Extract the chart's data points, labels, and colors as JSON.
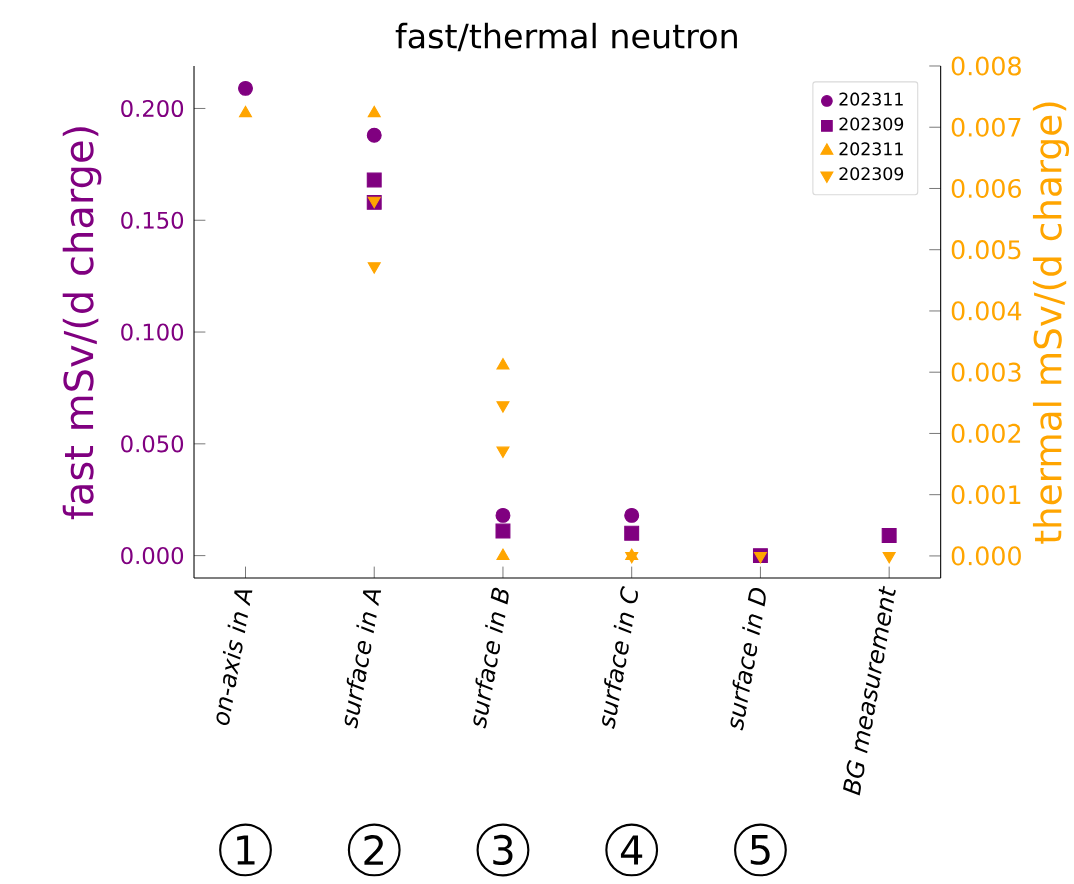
{
  "chart_data": {
    "type": "scatter",
    "title": "fast/thermal neutron",
    "categories": [
      "on-axis in A",
      "surface in A",
      "surface in B",
      "surface in C",
      "surface in D",
      "BG measurement"
    ],
    "ylabel": "fast mSv/(d charge)",
    "y2label": "thermal mSv/(d charge)",
    "ylim": [
      -0.01,
      0.219
    ],
    "yticks": [
      {
        "value": 0,
        "label": "0.000"
      },
      {
        "value": 0.05,
        "label": "0.050"
      },
      {
        "value": 0.1,
        "label": "0.100"
      },
      {
        "value": 0.15,
        "label": "0.150"
      },
      {
        "value": 0.2,
        "label": "0.200"
      }
    ],
    "y2lim": [
      -0.00036,
      0.008
    ],
    "y2ticks": [
      {
        "value": 0,
        "label": "0.000"
      },
      {
        "value": 0.001,
        "label": "0.001"
      },
      {
        "value": 0.002,
        "label": "0.002"
      },
      {
        "value": 0.003,
        "label": "0.003"
      },
      {
        "value": 0.004,
        "label": "0.004"
      },
      {
        "value": 0.005,
        "label": "0.005"
      },
      {
        "value": 0.006,
        "label": "0.006"
      },
      {
        "value": 0.007,
        "label": "0.007"
      },
      {
        "value": 0.008,
        "label": "0.008"
      }
    ],
    "legend": "top right",
    "grid": false,
    "series": [
      {
        "name": "202311",
        "color": "#800080",
        "marker": "circle",
        "values": [
          0.209,
          0.188,
          0.018,
          0.018,
          null,
          null
        ]
      },
      {
        "name": "202309",
        "color": "#800080",
        "marker": "square",
        "values": [
          null,
          0.168,
          0.011,
          0.01,
          0,
          0.009
        ]
      },
      {
        "color": "#800080",
        "marker": "square",
        "values": [
          null,
          0.158,
          null,
          null,
          null,
          null
        ]
      },
      {
        "name": "202311",
        "color": "#ffa500",
        "marker": "triangle",
        "axis": "y2",
        "values": [
          0.00723,
          0.00723,
          0.00311,
          0,
          null,
          null
        ]
      },
      {
        "name": "202309",
        "color": "#ffa500",
        "marker": "triangle-down",
        "axis": "y2",
        "values": [
          null,
          0.0058,
          0.00246,
          0,
          0,
          0
        ]
      },
      {
        "color": "#ffa500",
        "marker": "triangle",
        "axis": "y2",
        "values": [
          null,
          null,
          0,
          null,
          null,
          null
        ]
      },
      {
        "color": "#ffa500",
        "marker": "triangle-down",
        "axis": "y2",
        "values": [
          null,
          0.00473,
          0.00172,
          null,
          null,
          null
        ]
      }
    ],
    "annotations": [
      "1",
      "2",
      "3",
      "4",
      "5"
    ]
  }
}
